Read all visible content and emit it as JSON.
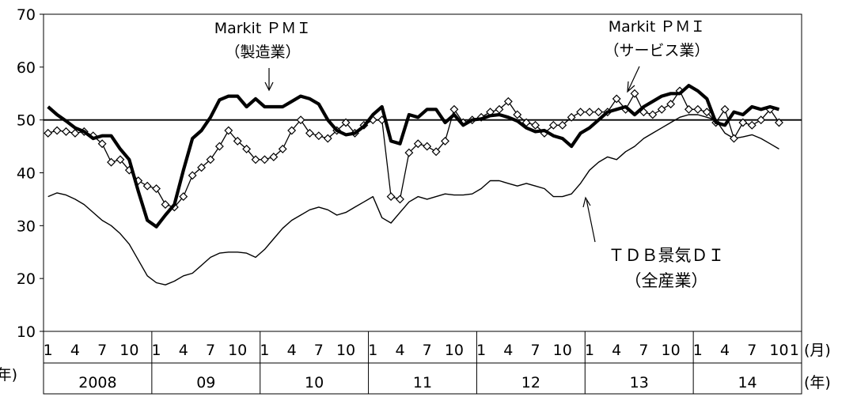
{
  "chart_data": {
    "type": "line",
    "title": "",
    "xlabel": "",
    "ylabel": "",
    "ylim": [
      10,
      70
    ],
    "y_ticks": [
      "10",
      "20",
      "30",
      "40",
      "50",
      "60",
      "70"
    ],
    "reference_line": 50,
    "grid": false,
    "legend": "none",
    "month_labels": [
      "1",
      "4",
      "7",
      "10"
    ],
    "month_label_last": "1",
    "month_unit": "(月)",
    "year_unit": "(年)",
    "year_unit_left": "年)",
    "years": [
      "2008",
      "09",
      "10",
      "11",
      "12",
      "13",
      "14"
    ],
    "x_start": "2008-01",
    "x_end": "2014-10",
    "series": [
      {
        "label_lines": [
          "Markit ＰＭＩ",
          "（製造業）"
        ],
        "color": "#000000",
        "style": "thick",
        "values": [
          52.5,
          51.0,
          49.8,
          48.5,
          47.8,
          46.5,
          47.0,
          47.0,
          44.5,
          42.5,
          36.5,
          31.0,
          29.8,
          32.0,
          34.0,
          40.5,
          46.5,
          48.0,
          50.5,
          53.8,
          54.5,
          54.5,
          52.5,
          54.0,
          52.5,
          52.5,
          52.5,
          53.5,
          54.5,
          54.0,
          53.0,
          50.0,
          48.0,
          47.2,
          47.5,
          48.8,
          51.0,
          52.5,
          46.0,
          45.5,
          51.0,
          50.5,
          52.0,
          52.0,
          49.5,
          51.0,
          49.0,
          50.0,
          50.2,
          50.8,
          51.0,
          50.5,
          49.8,
          48.5,
          47.8,
          48.0,
          47.0,
          46.5,
          45.0,
          47.5,
          48.5,
          50.0,
          51.5,
          52.0,
          52.5,
          51.0,
          52.5,
          53.5,
          54.5,
          55.0,
          55.0,
          56.5,
          55.5,
          54.0,
          49.5,
          49.0,
          51.5,
          51.0,
          52.5,
          52.0,
          52.5,
          52.0
        ]
      },
      {
        "label_lines": [
          "Markit ＰＭＩ",
          "（サービス業）"
        ],
        "color": "#000000",
        "style": "diamond",
        "values": [
          47.5,
          48.0,
          47.8,
          47.5,
          47.8,
          47.0,
          45.5,
          42.0,
          42.5,
          40.5,
          38.5,
          37.5,
          37.0,
          34.0,
          33.5,
          35.5,
          39.5,
          41.0,
          42.5,
          45.0,
          48.0,
          46.0,
          44.5,
          42.5,
          42.5,
          43.0,
          44.5,
          48.0,
          50.0,
          47.5,
          47.0,
          46.5,
          48.0,
          49.5,
          47.5,
          49.0,
          50.0,
          50.0,
          35.5,
          35.0,
          43.8,
          45.5,
          45.0,
          44.0,
          46.0,
          52.0,
          49.5,
          50.0,
          50.5,
          51.5,
          52.0,
          53.5,
          51.0,
          49.5,
          49.0,
          47.5,
          49.0,
          49.0,
          50.5,
          51.5,
          51.5,
          51.5,
          51.5,
          54.0,
          52.0,
          55.0,
          51.5,
          51.0,
          52.0,
          53.0,
          55.5,
          52.0,
          52.0,
          51.5,
          49.5,
          52.0,
          46.5,
          49.5,
          49.0,
          50.0,
          52.0,
          49.5
        ]
      },
      {
        "label_lines": [
          "ＴＤＢ景気ＤＩ",
          "（全産業）"
        ],
        "color": "#000000",
        "style": "thin",
        "values": [
          35.5,
          36.2,
          35.8,
          35.0,
          34.0,
          32.5,
          31.0,
          30.0,
          28.5,
          26.5,
          23.5,
          20.5,
          19.2,
          18.8,
          19.5,
          20.5,
          21.0,
          22.5,
          24.0,
          24.8,
          25.0,
          25.0,
          24.8,
          24.0,
          25.5,
          27.5,
          29.5,
          31.0,
          32.0,
          33.0,
          33.5,
          33.0,
          32.0,
          32.5,
          33.5,
          34.5,
          35.5,
          31.5,
          30.5,
          32.5,
          34.5,
          35.5,
          35.0,
          35.5,
          36.0,
          35.8,
          35.8,
          36.0,
          37.0,
          38.5,
          38.5,
          38.0,
          37.5,
          38.0,
          37.5,
          37.0,
          35.5,
          35.5,
          36.0,
          38.0,
          40.5,
          42.0,
          43.0,
          42.5,
          44.0,
          45.0,
          46.5,
          47.5,
          48.5,
          49.5,
          50.5,
          51.0,
          51.0,
          50.5,
          50.0,
          47.5,
          46.5,
          46.8,
          47.2,
          46.5,
          45.5,
          44.5
        ]
      }
    ]
  }
}
